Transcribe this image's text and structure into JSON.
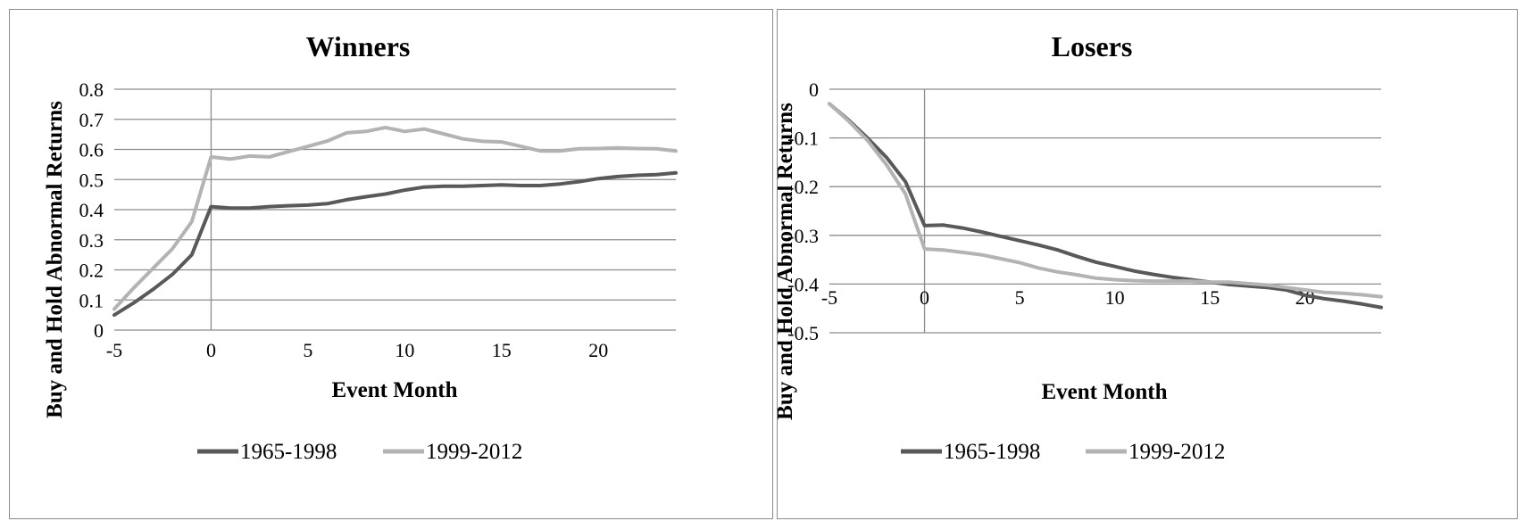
{
  "chart_data": [
    {
      "type": "line",
      "title": "Winners",
      "xlabel": "Event Month",
      "ylabel": "Buy and Hold Abnormal Returns",
      "xlim": [
        -5,
        24
      ],
      "ylim": [
        0,
        0.8
      ],
      "xticks": [
        -5,
        0,
        5,
        10,
        15,
        20
      ],
      "yticks": [
        0,
        0.1,
        0.2,
        0.3,
        0.4,
        0.5,
        0.6,
        0.7,
        0.8
      ],
      "ytick_labels": [
        "0",
        "0.1",
        "0.2",
        "0.3",
        "0.4",
        "0.5",
        "0.6",
        "0.7",
        "0.8"
      ],
      "grid": "horizontal",
      "legend": "bottom",
      "x": [
        -5,
        -4,
        -3,
        -2,
        -1,
        0,
        1,
        2,
        3,
        4,
        5,
        6,
        7,
        8,
        9,
        10,
        11,
        12,
        13,
        14,
        15,
        16,
        17,
        18,
        19,
        20,
        21,
        22,
        23,
        24
      ],
      "series": [
        {
          "name": "1965-1998",
          "color": "#595959",
          "values": [
            0.05,
            0.09,
            0.135,
            0.185,
            0.25,
            0.41,
            0.405,
            0.405,
            0.41,
            0.413,
            0.415,
            0.42,
            0.433,
            0.443,
            0.452,
            0.465,
            0.475,
            0.478,
            0.478,
            0.48,
            0.482,
            0.48,
            0.48,
            0.485,
            0.493,
            0.503,
            0.51,
            0.514,
            0.516,
            0.522
          ]
        },
        {
          "name": "1999-2012",
          "color": "#b3b3b3",
          "values": [
            0.07,
            0.14,
            0.205,
            0.27,
            0.36,
            0.575,
            0.568,
            0.578,
            0.575,
            0.593,
            0.61,
            0.628,
            0.655,
            0.66,
            0.673,
            0.66,
            0.668,
            0.652,
            0.635,
            0.627,
            0.625,
            0.61,
            0.595,
            0.595,
            0.602,
            0.603,
            0.605,
            0.603,
            0.602,
            0.595
          ]
        }
      ]
    },
    {
      "type": "line",
      "title": "Losers",
      "xlabel": "Event Month",
      "ylabel": "Buy and Hold Abnormal Returns",
      "xlim": [
        -5,
        24
      ],
      "ylim": [
        -0.5,
        0
      ],
      "xticks": [
        -5,
        0,
        5,
        10,
        15,
        20
      ],
      "yticks": [
        0,
        -0.1,
        -0.2,
        -0.3,
        -0.4,
        -0.5
      ],
      "ytick_labels": [
        "0",
        "-0.1",
        "-0.2",
        "-0.3",
        "-0.4",
        "-0.5"
      ],
      "grid": "horizontal",
      "legend": "bottom",
      "x": [
        -5,
        -4,
        -3,
        -2,
        -1,
        0,
        1,
        2,
        3,
        4,
        5,
        6,
        7,
        8,
        9,
        10,
        11,
        12,
        13,
        14,
        15,
        16,
        17,
        18,
        19,
        20,
        21,
        22,
        23,
        24
      ],
      "series": [
        {
          "name": "1965-1998",
          "color": "#595959",
          "values": [
            -0.03,
            -0.063,
            -0.1,
            -0.14,
            -0.19,
            -0.28,
            -0.279,
            -0.285,
            -0.293,
            -0.302,
            -0.311,
            -0.32,
            -0.33,
            -0.343,
            -0.355,
            -0.364,
            -0.373,
            -0.38,
            -0.386,
            -0.391,
            -0.396,
            -0.401,
            -0.404,
            -0.407,
            -0.412,
            -0.423,
            -0.43,
            -0.435,
            -0.441,
            -0.448
          ]
        },
        {
          "name": "1999-2012",
          "color": "#b3b3b3",
          "values": [
            -0.03,
            -0.065,
            -0.105,
            -0.155,
            -0.215,
            -0.328,
            -0.33,
            -0.335,
            -0.34,
            -0.348,
            -0.356,
            -0.367,
            -0.375,
            -0.381,
            -0.388,
            -0.391,
            -0.393,
            -0.394,
            -0.394,
            -0.394,
            -0.396,
            -0.396,
            -0.399,
            -0.402,
            -0.407,
            -0.412,
            -0.417,
            -0.419,
            -0.422,
            -0.426
          ]
        }
      ]
    }
  ]
}
